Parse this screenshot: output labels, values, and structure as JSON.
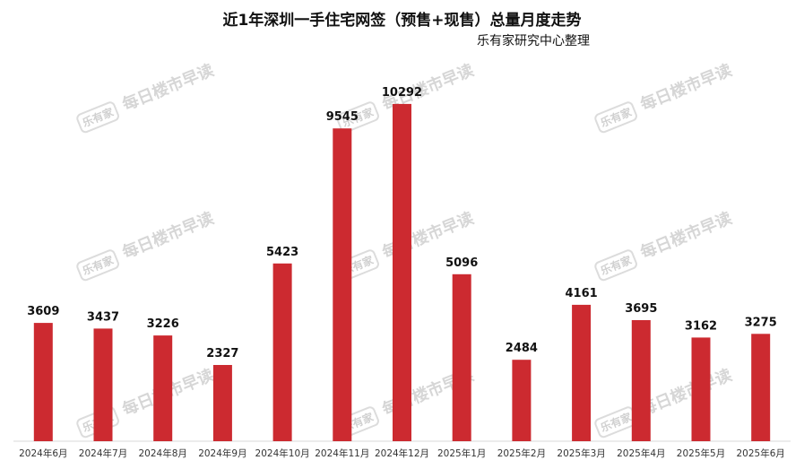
{
  "watermark": {
    "logo_text": "乐有家",
    "text": "每日楼市早读"
  },
  "chart_data": {
    "type": "bar",
    "title": "近1年深圳一手住宅网签（预售+现售）总量月度走势",
    "subtitle": "乐有家研究中心整理",
    "categories": [
      "2024年6月",
      "2024年7月",
      "2024年8月",
      "2024年9月",
      "2024年10月",
      "2024年11月",
      "2024年12月",
      "2025年1月",
      "2025年2月",
      "2025年3月",
      "2025年4月",
      "2025年5月",
      "2025年6月"
    ],
    "values": [
      3609,
      3437,
      3226,
      2327,
      5423,
      9545,
      10292,
      5096,
      2484,
      4161,
      3695,
      3162,
      3275
    ],
    "ylim": [
      0,
      11000
    ],
    "bar_color": "#cc2a30",
    "xlabel": "",
    "ylabel": "",
    "grid": false
  }
}
